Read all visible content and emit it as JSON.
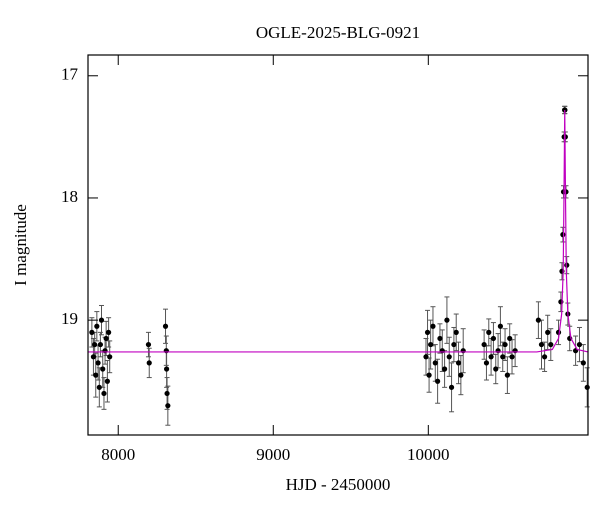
{
  "chart_data": {
    "type": "scatter",
    "title": "OGLE-2025-BLG-0921",
    "x_label": "HJD - 2450000",
    "y_label": "I magnitude",
    "xlim": [
      7805,
      11030
    ],
    "ylim": [
      19.94,
      16.83
    ],
    "y_inverted": true,
    "xticks": [
      8000,
      9000,
      10000
    ],
    "yticks": [
      17,
      18,
      19
    ],
    "series": [
      {
        "kind": "points",
        "color": "#000000",
        "x": [
          7830,
          7840,
          7848,
          7855,
          7862,
          7870,
          7878,
          7885,
          7892,
          7900,
          7908,
          7915,
          7922,
          7930,
          7938,
          7945,
          8195,
          8200,
          8305,
          8310,
          8312,
          8315,
          8320,
          9985,
          9995,
          10005,
          10015,
          10030,
          10045,
          10060,
          10075,
          10090,
          10105,
          10120,
          10135,
          10150,
          10165,
          10180,
          10195,
          10210,
          10225,
          10360,
          10375,
          10390,
          10405,
          10420,
          10435,
          10450,
          10465,
          10480,
          10495,
          10510,
          10525,
          10540,
          10560,
          10710,
          10730,
          10750,
          10770,
          10790,
          10840,
          10855,
          10862,
          10868,
          10872,
          10876,
          10879,
          10881,
          10884,
          10888,
          10893,
          10900,
          10912,
          10950,
          10975,
          11000,
          11025
        ],
        "values": [
          19.1,
          19.3,
          19.2,
          19.45,
          19.05,
          19.35,
          19.55,
          19.2,
          19.0,
          19.4,
          19.6,
          19.25,
          19.15,
          19.5,
          19.1,
          19.3,
          19.2,
          19.35,
          19.05,
          19.25,
          19.4,
          19.6,
          19.7,
          19.3,
          19.1,
          19.45,
          19.2,
          19.05,
          19.35,
          19.5,
          19.15,
          19.25,
          19.4,
          19.0,
          19.3,
          19.55,
          19.2,
          19.1,
          19.35,
          19.45,
          19.25,
          19.2,
          19.35,
          19.1,
          19.3,
          19.15,
          19.4,
          19.25,
          19.05,
          19.3,
          19.2,
          19.45,
          19.15,
          19.3,
          19.25,
          19.0,
          19.2,
          19.3,
          19.1,
          19.2,
          19.1,
          18.85,
          18.6,
          18.3,
          17.95,
          17.5,
          17.28,
          17.28,
          17.5,
          17.95,
          18.55,
          18.95,
          19.15,
          19.25,
          19.2,
          19.35,
          19.55
        ],
        "errors": [
          0.12,
          0.15,
          0.1,
          0.18,
          0.12,
          0.14,
          0.16,
          0.1,
          0.12,
          0.15,
          0.13,
          0.11,
          0.14,
          0.17,
          0.12,
          0.13,
          0.1,
          0.12,
          0.14,
          0.12,
          0.15,
          0.13,
          0.16,
          0.15,
          0.18,
          0.14,
          0.2,
          0.16,
          0.15,
          0.18,
          0.12,
          0.17,
          0.15,
          0.19,
          0.16,
          0.2,
          0.14,
          0.15,
          0.17,
          0.16,
          0.18,
          0.12,
          0.14,
          0.11,
          0.15,
          0.13,
          0.12,
          0.14,
          0.16,
          0.12,
          0.13,
          0.15,
          0.12,
          0.14,
          0.13,
          0.15,
          0.2,
          0.12,
          0.14,
          0.13,
          0.1,
          0.08,
          0.07,
          0.06,
          0.05,
          0.04,
          0.03,
          0.03,
          0.04,
          0.05,
          0.07,
          0.09,
          0.1,
          0.12,
          0.14,
          0.15,
          0.16
        ]
      },
      {
        "kind": "line",
        "color": "#c000c0",
        "x": [
          7805,
          10700,
          10800,
          10840,
          10860,
          10870,
          10875,
          10880,
          10885,
          10890,
          10900,
          10920,
          10960,
          11030
        ],
        "values": [
          19.26,
          19.26,
          19.24,
          19.15,
          18.95,
          18.6,
          18.0,
          17.28,
          18.0,
          18.6,
          18.95,
          19.15,
          19.24,
          19.26
        ]
      }
    ]
  }
}
